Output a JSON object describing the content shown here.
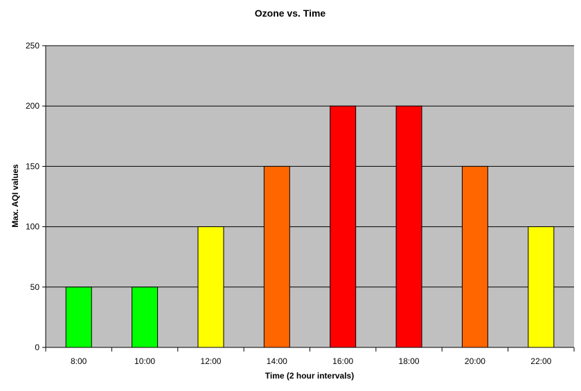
{
  "chart_data": {
    "type": "bar",
    "title": "Ozone vs. Time",
    "xlabel": "Time (2 hour intervals)",
    "ylabel": "Max. AQI values",
    "categories": [
      "8:00",
      "10:00",
      "12:00",
      "14:00",
      "16:00",
      "18:00",
      "20:00",
      "22:00"
    ],
    "values": [
      50,
      50,
      100,
      150,
      200,
      200,
      150,
      100
    ],
    "bar_colors": [
      "#00ff00",
      "#00ff00",
      "#ffff00",
      "#ff6600",
      "#ff0000",
      "#ff0000",
      "#ff6600",
      "#ffff00"
    ],
    "ylim": [
      0,
      250
    ],
    "yticks": [
      0,
      50,
      100,
      150,
      200,
      250
    ],
    "grid": true,
    "legend": "none",
    "plot_background": "#c0c0c0"
  }
}
